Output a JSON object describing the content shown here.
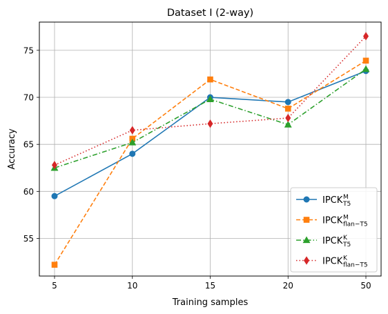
{
  "chart_data": {
    "type": "line",
    "title": "Dataset I (2-way)",
    "xlabel": "Training samples",
    "ylabel": "Accuracy",
    "categories": [
      "5",
      "10",
      "15",
      "20",
      "50"
    ],
    "ylim": [
      51,
      78
    ],
    "yticks": [
      55,
      60,
      65,
      70,
      75
    ],
    "grid": true,
    "legend_position": "lower-right",
    "series": [
      {
        "name": "IPCK",
        "name_sup": "M",
        "name_sub": "T5",
        "color": "#1f77b4",
        "linestyle": "solid",
        "marker": "circle",
        "values": [
          59.5,
          64.0,
          70.0,
          69.5,
          72.8
        ]
      },
      {
        "name": "IPCK",
        "name_sup": "M",
        "name_sub": "flan−T5",
        "color": "#ff7f0e",
        "linestyle": "dashed",
        "marker": "square",
        "values": [
          52.2,
          65.6,
          71.9,
          68.8,
          73.9
        ]
      },
      {
        "name": "IPCK",
        "name_sup": "K",
        "name_sub": "T5",
        "color": "#2ca02c",
        "linestyle": "dashdot",
        "marker": "triangle",
        "values": [
          62.5,
          65.2,
          69.8,
          67.1,
          73.0
        ]
      },
      {
        "name": "IPCK",
        "name_sup": "K",
        "name_sub": "flan−T5",
        "color": "#d62728",
        "linestyle": "dotted",
        "marker": "diamond",
        "values": [
          62.8,
          66.5,
          67.2,
          67.8,
          76.5
        ]
      }
    ]
  }
}
